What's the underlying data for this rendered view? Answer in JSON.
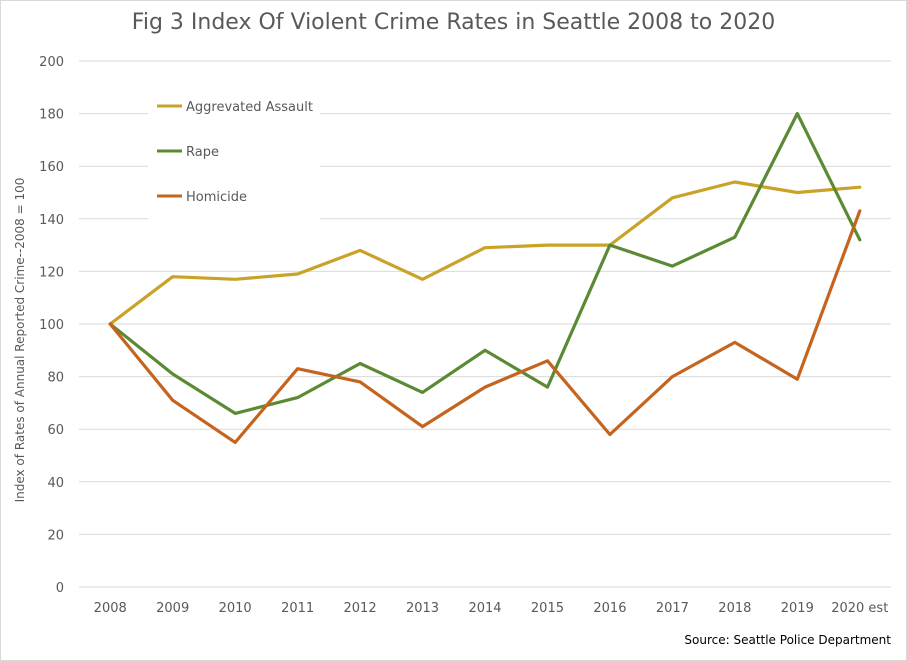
{
  "chart_data": {
    "type": "line",
    "title": "Fig 3 Index Of Violent Crime Rates in Seattle 2008 to 2020",
    "ylabel": "Index of Rates of Annual Reported Crime--2008 = 100",
    "xlabel": "",
    "categories": [
      "2008",
      "2009",
      "2010",
      "2011",
      "2012",
      "2013",
      "2014",
      "2015",
      "2016",
      "2017",
      "2018",
      "2019",
      "2020 est"
    ],
    "ylim": [
      0,
      200
    ],
    "yticks": [
      "0",
      "20",
      "40",
      "60",
      "80",
      "100",
      "120",
      "140",
      "160",
      "180",
      "200"
    ],
    "grid": true,
    "legend_position": "top-left",
    "series": [
      {
        "name": "Aggrevated Assault",
        "color": "#c9a227",
        "values": [
          100,
          118,
          117,
          119,
          128,
          117,
          129,
          130,
          130,
          148,
          154,
          150,
          152
        ]
      },
      {
        "name": "Rape",
        "color": "#5b8a35",
        "values": [
          100,
          81,
          66,
          72,
          85,
          74,
          90,
          76,
          130,
          122,
          133,
          180,
          132
        ]
      },
      {
        "name": "Homicide",
        "color": "#c4641e",
        "values": [
          100,
          71,
          55,
          83,
          78,
          61,
          76,
          86,
          58,
          80,
          93,
          79,
          143
        ]
      }
    ],
    "source": "Source: Seattle Police Department"
  }
}
